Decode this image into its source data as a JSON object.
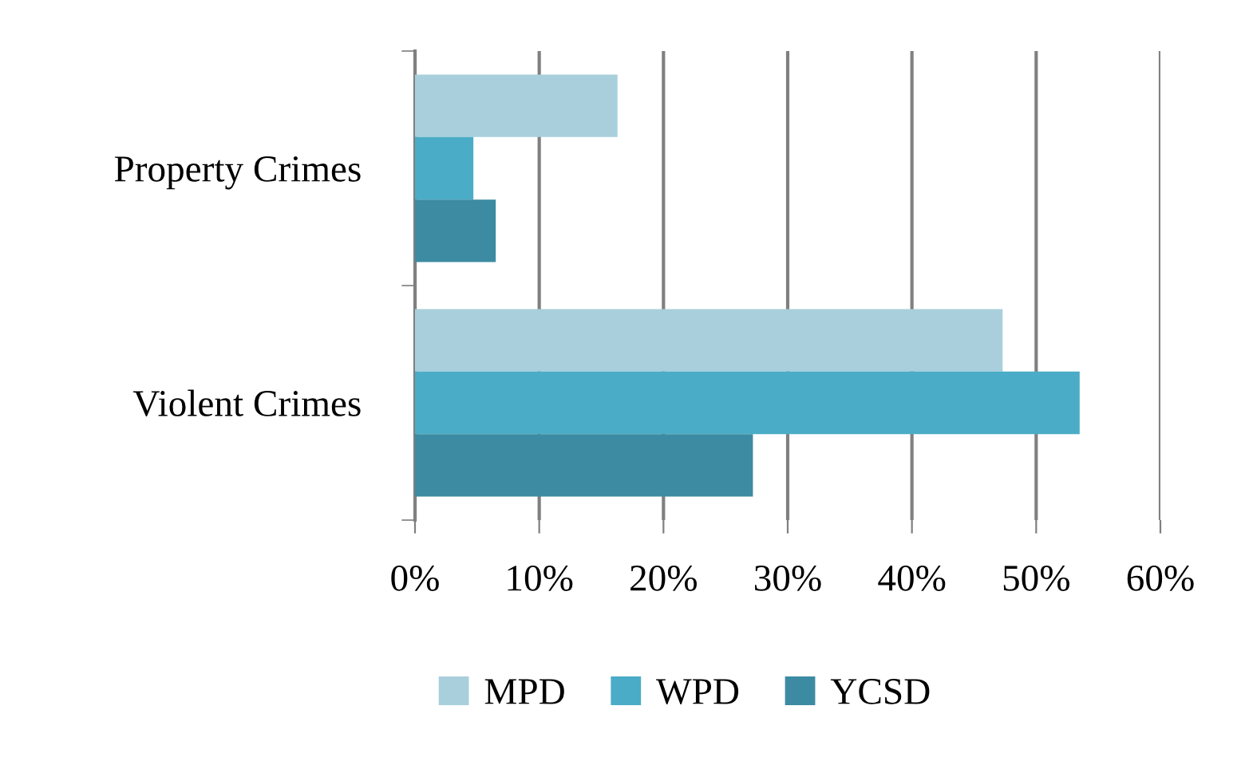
{
  "chart_data": {
    "type": "bar",
    "orientation": "horizontal",
    "categories": [
      "Property Crimes",
      "Violent Crimes"
    ],
    "series": [
      {
        "name": "MPD",
        "color": "#a9cfdc",
        "values": [
          16.3,
          47.3
        ]
      },
      {
        "name": "WPD",
        "color": "#4aacc6",
        "values": [
          4.7,
          53.5
        ]
      },
      {
        "name": "YCSD",
        "color": "#3c8ba2",
        "values": [
          6.5,
          27.2
        ]
      }
    ],
    "xlim": [
      0,
      60
    ],
    "xticks": [
      {
        "value": 0,
        "label": "0%"
      },
      {
        "value": 10,
        "label": "10%"
      },
      {
        "value": 20,
        "label": "20%"
      },
      {
        "value": 30,
        "label": "30%"
      },
      {
        "value": 40,
        "label": "40%"
      },
      {
        "value": 50,
        "label": "50%"
      },
      {
        "value": 60,
        "label": "60%"
      }
    ],
    "grid": "x",
    "legend": "bottom"
  }
}
